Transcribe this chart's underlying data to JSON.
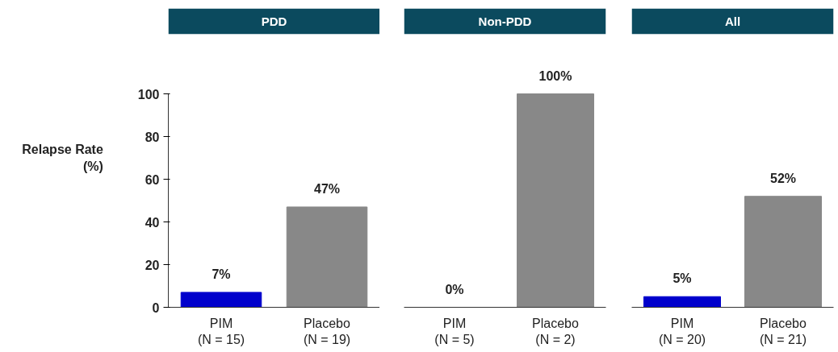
{
  "chart_data": [
    {
      "type": "bar",
      "title": "PDD",
      "ylabel": "Relapse Rate\n(%)",
      "categories": [
        "PIM\n(N = 15)",
        "Placebo\n(N = 19)"
      ],
      "values": [
        7,
        47
      ],
      "colors": [
        "#0000cc",
        "#888888"
      ],
      "value_labels": [
        "7%",
        "47%"
      ],
      "ylim": [
        0,
        100
      ],
      "yticks": [
        0,
        20,
        40,
        60,
        80,
        100
      ],
      "grid": false
    },
    {
      "type": "bar",
      "title": "Non-PDD",
      "categories": [
        "PIM\n(N = 5)",
        "Placebo\n(N = 2)"
      ],
      "values": [
        0,
        100
      ],
      "colors": [
        "#0000cc",
        "#888888"
      ],
      "value_labels": [
        "0%",
        "100%"
      ],
      "ylim": [
        0,
        100
      ],
      "tick_labels": "x",
      "grid": false
    },
    {
      "type": "bar",
      "title": "All",
      "categories": [
        "PIM\n(N = 20)",
        "Placebo\n(N = 21)"
      ],
      "values": [
        5,
        52
      ],
      "colors": [
        "#0000cc",
        "#888888"
      ],
      "value_labels": [
        "5%",
        "52%"
      ],
      "ylim": [
        0,
        100
      ],
      "tick_labels": "x",
      "grid": false
    }
  ]
}
